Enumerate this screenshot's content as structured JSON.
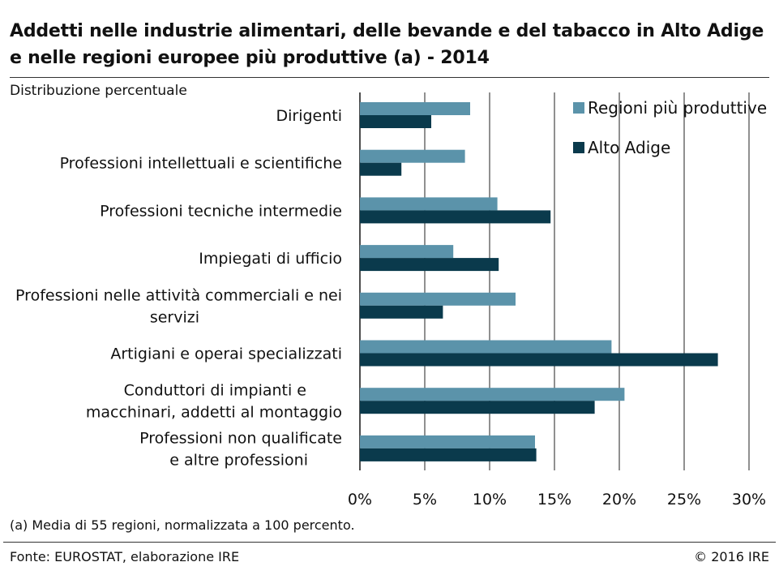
{
  "header": {
    "title": "Addetti nelle industrie alimentari, delle bevande e del tabacco in Alto Adige e nelle regioni europee più produttive (a) - 2014",
    "subtitle": "Distribuzione percentuale"
  },
  "footer": {
    "note": "(a) Media di 55 regioni, normalizzata a 100 percento.",
    "source": "Fonte: EUROSTAT, elaborazione IRE",
    "copyright": "© 2016 IRE"
  },
  "colors": {
    "regioni": "#5b93aa",
    "alto_adige": "#0a3a4c",
    "grid": "#222222"
  },
  "chart_data": {
    "type": "bar",
    "orientation": "horizontal",
    "title": "Addetti nelle industrie alimentari, delle bevande e del tabacco in Alto Adige e nelle regioni europee più produttive (a) - 2014",
    "subtitle": "Distribuzione percentuale",
    "categories": [
      [
        "Dirigenti"
      ],
      [
        "Professioni intellettuali e scientifiche"
      ],
      [
        "Professioni tecniche intermedie"
      ],
      [
        "Impiegati di ufficio"
      ],
      [
        "Professioni nelle attività commerciali e nei",
        "servizi"
      ],
      [
        "Artigiani e operai specializzati"
      ],
      [
        "Conduttori di impianti e",
        "macchinari, addetti al montaggio"
      ],
      [
        "Professioni non qualificate",
        "e altre professioni"
      ]
    ],
    "series": [
      {
        "name": "Regioni più produttive",
        "values": [
          8.5,
          8.1,
          10.6,
          7.2,
          12.0,
          19.4,
          20.4,
          13.5
        ]
      },
      {
        "name": "Alto Adige",
        "values": [
          5.5,
          3.2,
          14.7,
          10.7,
          6.4,
          27.6,
          18.1,
          13.6
        ]
      }
    ],
    "xlim": [
      0,
      30
    ],
    "xticks": [
      0,
      5,
      10,
      15,
      20,
      25,
      30
    ],
    "tick_labels": [
      "0%",
      "5%",
      "10%",
      "15%",
      "20%",
      "25%",
      "30%"
    ],
    "grid": true,
    "legend_position": "top-right"
  }
}
